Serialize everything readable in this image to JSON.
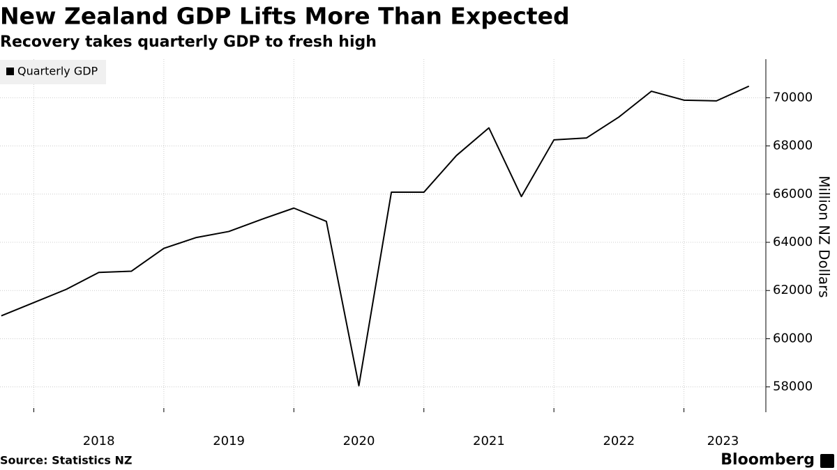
{
  "chart_data": {
    "type": "line",
    "title": "New Zealand GDP Lifts More Than Expected",
    "subtitle": "Recovery takes quarterly GDP to fresh high",
    "y_label": "Million NZ Dollars",
    "source": "Source: Statistics NZ",
    "brand": "Bloomberg",
    "x": [
      2017.75,
      2018,
      2018.25,
      2018.5,
      2018.75,
      2019,
      2019.25,
      2019.5,
      2019.75,
      2020,
      2020.25,
      2020.5,
      2020.75,
      2021,
      2021.25,
      2021.5,
      2021.75,
      2022,
      2022.25,
      2022.5,
      2022.75,
      2023,
      2023.25,
      2023.5
    ],
    "series": [
      {
        "name": "Quarterly GDP",
        "color": "#000000",
        "values": [
          60950,
          61500,
          62050,
          62750,
          62800,
          63750,
          64200,
          64450,
          64950,
          65420,
          64870,
          58050,
          66080,
          66080,
          67600,
          68750,
          65900,
          68250,
          68330,
          69200,
          70270,
          69900,
          69870,
          70480
        ]
      }
    ],
    "xlim": [
      2017.74,
      2023.63
    ],
    "xticks": [
      {
        "value": 2018.5,
        "label": "2018"
      },
      {
        "value": 2019.5,
        "label": "2019"
      },
      {
        "value": 2020.5,
        "label": "2020"
      },
      {
        "value": 2021.5,
        "label": "2021"
      },
      {
        "value": 2022.5,
        "label": "2022"
      },
      {
        "value": 2023.3,
        "label": "2023"
      }
    ],
    "xgrid": [
      2018,
      2019,
      2020,
      2021,
      2022,
      2023
    ],
    "ylim": [
      56950,
      71600
    ],
    "yticks": [
      58000,
      60000,
      62000,
      64000,
      66000,
      68000,
      70000
    ],
    "grid": true,
    "legend": "top-left"
  }
}
